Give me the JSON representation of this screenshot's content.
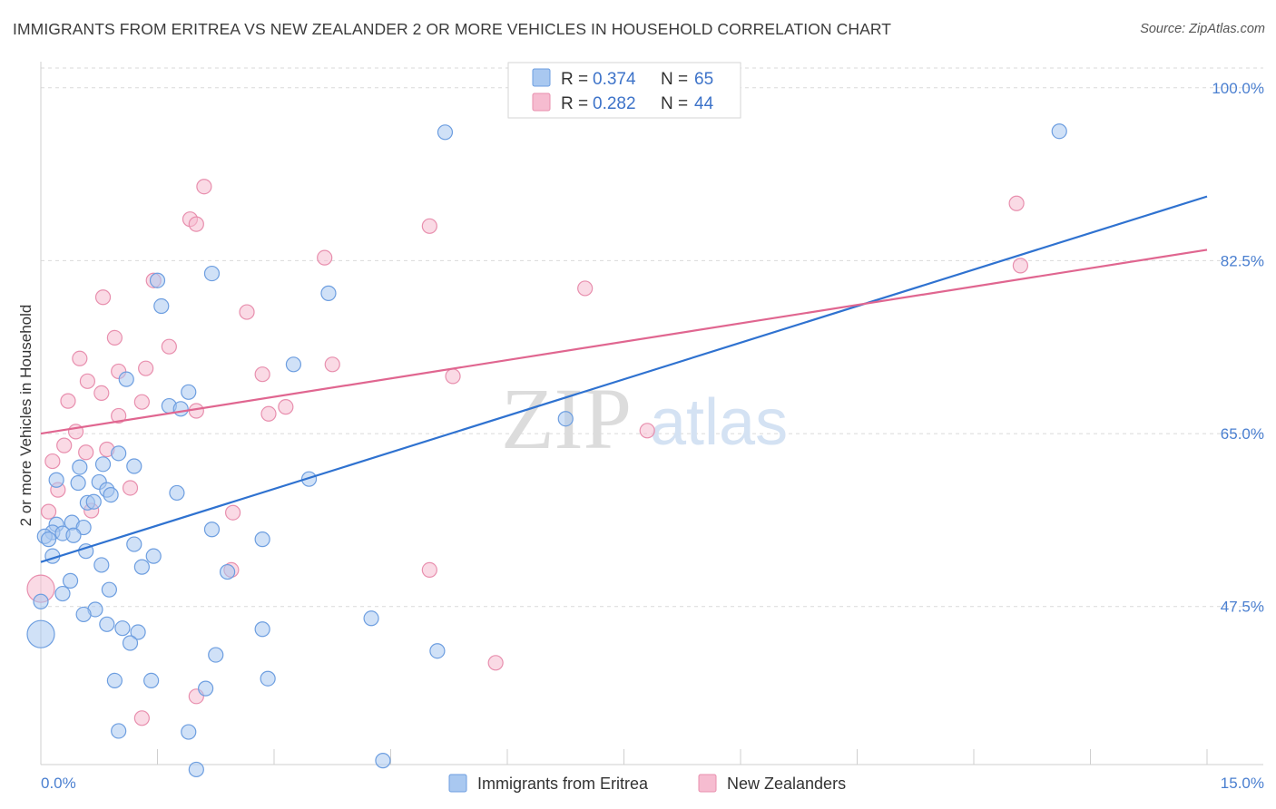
{
  "header": {
    "title": "IMMIGRANTS FROM ERITREA VS NEW ZEALANDER 2 OR MORE VEHICLES IN HOUSEHOLD CORRELATION CHART",
    "source": "Source: ZipAtlas.com"
  },
  "watermark": {
    "zip": "ZIP",
    "atlas": "atlas"
  },
  "chart_data": {
    "type": "scatter",
    "title": "IMMIGRANTS FROM ERITREA VS NEW ZEALANDER 2 OR MORE VEHICLES IN HOUSEHOLD CORRELATION CHART",
    "xlabel": "",
    "ylabel": "2 or more Vehicles in Household",
    "xlim": [
      0,
      15
    ],
    "ylim": [
      31.5,
      102
    ],
    "x_tick_labels": [
      "0.0%",
      "15.0%"
    ],
    "y_ticks": [
      100,
      82.5,
      65,
      47.5
    ],
    "y_tick_labels": [
      "100.0%",
      "82.5%",
      "65.0%",
      "47.5%"
    ],
    "grid": "horizontal dashed",
    "legend_placement": "top-center",
    "colors": {
      "blue_fill": "#a9c8f0",
      "blue_stroke": "#6d9ee0",
      "blue_line": "#2f72d0",
      "pink_fill": "#f6bcd0",
      "pink_stroke": "#e88fae",
      "pink_line": "#e06690",
      "value_text": "#3d73c9"
    },
    "stats": [
      {
        "r_label": "R = ",
        "r_value": "0.374",
        "n_label": "N = ",
        "n_value": "65"
      },
      {
        "r_label": "R = ",
        "r_value": "0.282",
        "n_label": "N = ",
        "n_value": "44"
      }
    ],
    "series": [
      {
        "name": "Immigrants from Eritrea",
        "color": "blue",
        "trend": {
          "x": [
            0,
            15
          ],
          "y": [
            52.0,
            89.0
          ]
        },
        "points": [
          [
            5.2,
            95.5
          ],
          [
            13.1,
            95.6
          ],
          [
            2.2,
            81.2
          ],
          [
            1.5,
            80.5
          ],
          [
            3.7,
            79.2
          ],
          [
            1.55,
            77.9
          ],
          [
            3.25,
            72.0
          ],
          [
            1.1,
            70.5
          ],
          [
            1.9,
            69.2
          ],
          [
            1.65,
            67.8
          ],
          [
            1.8,
            67.5
          ],
          [
            6.75,
            66.5
          ],
          [
            1.0,
            63.0
          ],
          [
            0.8,
            61.9
          ],
          [
            1.2,
            61.7
          ],
          [
            0.5,
            61.6
          ],
          [
            0.2,
            60.3
          ],
          [
            3.45,
            60.4
          ],
          [
            0.48,
            60.0
          ],
          [
            0.75,
            60.1
          ],
          [
            0.85,
            59.3
          ],
          [
            1.75,
            59.0
          ],
          [
            0.9,
            58.8
          ],
          [
            0.6,
            58.0
          ],
          [
            0.68,
            58.1
          ],
          [
            0.2,
            55.8
          ],
          [
            0.4,
            56.0
          ],
          [
            0.55,
            55.5
          ],
          [
            0.15,
            55.0
          ],
          [
            0.28,
            54.9
          ],
          [
            0.05,
            54.6
          ],
          [
            0.42,
            54.7
          ],
          [
            2.2,
            55.3
          ],
          [
            0.1,
            54.3
          ],
          [
            2.85,
            54.3
          ],
          [
            1.2,
            53.8
          ],
          [
            0.58,
            53.1
          ],
          [
            0.15,
            52.6
          ],
          [
            1.45,
            52.6
          ],
          [
            0.78,
            51.7
          ],
          [
            1.3,
            51.5
          ],
          [
            2.4,
            51.0
          ],
          [
            0.38,
            50.1
          ],
          [
            0.88,
            49.2
          ],
          [
            0.28,
            48.8
          ],
          [
            0.7,
            47.2
          ],
          [
            0.55,
            46.7
          ],
          [
            4.25,
            46.3
          ],
          [
            0.85,
            45.7
          ],
          [
            1.05,
            45.3
          ],
          [
            2.85,
            45.2
          ],
          [
            1.25,
            44.9
          ],
          [
            0.0,
            44.7
          ],
          [
            1.15,
            43.8
          ],
          [
            5.1,
            43.0
          ],
          [
            2.25,
            42.6
          ],
          [
            0.95,
            40.0
          ],
          [
            1.42,
            40.0
          ],
          [
            2.92,
            40.2
          ],
          [
            2.12,
            39.2
          ],
          [
            1.0,
            34.9
          ],
          [
            1.9,
            34.8
          ],
          [
            4.4,
            31.9
          ],
          [
            2.0,
            31.0
          ],
          [
            0.0,
            48.0
          ]
        ]
      },
      {
        "name": "New Zealanders",
        "color": "pink",
        "trend": {
          "x": [
            0,
            15
          ],
          "y": [
            65.0,
            83.6
          ]
        },
        "points": [
          [
            2.1,
            90.0
          ],
          [
            1.92,
            86.7
          ],
          [
            2.0,
            86.2
          ],
          [
            5.0,
            86.0
          ],
          [
            12.55,
            88.3
          ],
          [
            3.65,
            82.8
          ],
          [
            12.6,
            82.0
          ],
          [
            1.45,
            80.5
          ],
          [
            7.0,
            79.7
          ],
          [
            0.8,
            78.8
          ],
          [
            2.65,
            77.3
          ],
          [
            0.95,
            74.7
          ],
          [
            1.65,
            73.8
          ],
          [
            0.5,
            72.6
          ],
          [
            3.75,
            72.0
          ],
          [
            1.35,
            71.6
          ],
          [
            1.0,
            71.3
          ],
          [
            2.85,
            71.0
          ],
          [
            5.3,
            70.8
          ],
          [
            0.6,
            70.3
          ],
          [
            0.78,
            69.1
          ],
          [
            0.35,
            68.3
          ],
          [
            1.3,
            68.2
          ],
          [
            3.15,
            67.7
          ],
          [
            2.0,
            67.3
          ],
          [
            2.93,
            67.0
          ],
          [
            1.0,
            66.8
          ],
          [
            0.45,
            65.2
          ],
          [
            7.8,
            65.3
          ],
          [
            0.3,
            63.8
          ],
          [
            0.58,
            63.1
          ],
          [
            0.85,
            63.4
          ],
          [
            0.15,
            62.2
          ],
          [
            1.15,
            59.5
          ],
          [
            0.22,
            59.3
          ],
          [
            0.65,
            57.2
          ],
          [
            0.1,
            57.1
          ],
          [
            2.47,
            57.0
          ],
          [
            2.45,
            51.2
          ],
          [
            5.0,
            51.2
          ],
          [
            0.0,
            49.3
          ],
          [
            5.85,
            41.8
          ],
          [
            2.0,
            38.4
          ],
          [
            1.3,
            36.2
          ]
        ]
      }
    ]
  }
}
